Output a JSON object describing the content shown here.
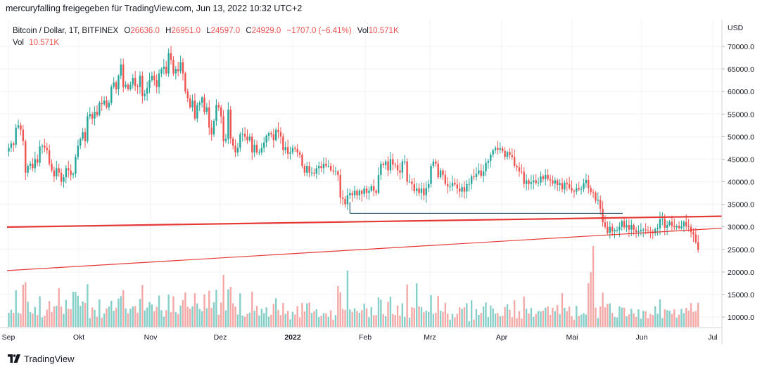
{
  "header": {
    "attribution": "mercuryfalling freigegeben für TradingView.com, Jun 13, 2022 10:32 UTC+2"
  },
  "legend": {
    "symbol": "Bitcoin / Dollar, 1T, BITFINEX",
    "open_label": "O",
    "open_value": "26636.0",
    "high_label": "H",
    "high_value": "26951.0",
    "low_label": "L",
    "low_value": "24597.0",
    "close_label": "C",
    "close_value": "24929.0",
    "change": "−1707.0 (−6.41%)",
    "vol_label": "Vol",
    "vol_value": "10.571K",
    "vol_row_label": "Vol",
    "vol_row_value": "10.571K"
  },
  "footer": {
    "brand": "TradingView"
  },
  "colors": {
    "up": "#26a69a",
    "down": "#ef5350",
    "up_vol": "#86cfc8",
    "down_vol": "#f4a9a7",
    "trendline": "#e53935",
    "support": "#1e4d5c"
  },
  "chart_data": {
    "type": "candlestick",
    "title": "Bitcoin / Dollar, 1T, BITFINEX",
    "currency_label": "USD",
    "y_ticks": [
      "70000.0",
      "65000.0",
      "60000.0",
      "55000.0",
      "50000.0",
      "45000.0",
      "40000.0",
      "35000.0",
      "30000.0",
      "25000.0",
      "20000.0",
      "15000.0",
      "10000.0"
    ],
    "x_ticks": [
      "Sep",
      "Okt",
      "Nov",
      "Dez",
      "2022",
      "Feb",
      "Mrz",
      "Apr",
      "Mai",
      "Jun",
      "Jul"
    ],
    "ylim": [
      7500,
      73000
    ],
    "x_range": [
      "2021-09-28",
      "2022-07-01"
    ],
    "closes": [
      47500,
      48500,
      48200,
      52000,
      52500,
      51500,
      49000,
      42000,
      43500,
      44000,
      43000,
      45000,
      44200,
      47800,
      48000,
      47500,
      47000,
      44000,
      42500,
      41200,
      43000,
      42000,
      40000,
      41000,
      43000,
      42500,
      41500,
      41800,
      45500,
      48000,
      49500,
      51000,
      49000,
      54500,
      55000,
      54000,
      55500,
      54800,
      57500,
      57200,
      58000,
      56500,
      57500,
      61000,
      62000,
      60500,
      63500,
      66000,
      61000,
      61500,
      60500,
      61500,
      63000,
      61200,
      61000,
      63500,
      59000,
      59500,
      60800,
      62500,
      63500,
      62500,
      61000,
      64000,
      65000,
      65500,
      64000,
      68500,
      67000,
      64000,
      65000,
      64500,
      66500,
      64000,
      60000,
      58500,
      56500,
      58000,
      54000,
      57000,
      57500,
      58700,
      55500,
      56500,
      52000,
      50500,
      53500,
      57000,
      56500,
      54500,
      49000,
      49500,
      56000,
      49500,
      48000,
      46500,
      47500,
      50500,
      50600,
      50000,
      49200,
      50000,
      46500,
      48200,
      46500,
      46500,
      47500,
      48700,
      50200,
      50800,
      50500,
      49200,
      51500,
      51000,
      50000,
      47000,
      47700,
      46200,
      46500,
      47500,
      47300,
      46500,
      46000,
      43500,
      42000,
      43500,
      42000,
      42000,
      41800,
      43000,
      43500,
      43000,
      44000,
      43500,
      43500,
      42500,
      42300,
      42300,
      41500,
      36500,
      36200,
      35000,
      37000,
      37500,
      37000,
      38000,
      37000,
      38000,
      37300,
      38500,
      37500,
      38000,
      39000,
      38000,
      37500,
      41500,
      44000,
      43700,
      44500,
      42500,
      45000,
      43800,
      43700,
      42500,
      42000,
      44500,
      44500,
      40000,
      40000,
      39500,
      37900,
      38500,
      37500,
      38500,
      37000,
      38600,
      39500,
      43500,
      44500,
      44000,
      41000,
      42500,
      41500,
      39500,
      39000,
      39000,
      39800,
      39400,
      38500,
      37800,
      38800,
      37800,
      39500,
      39500,
      41200,
      41000,
      41800,
      42500,
      41300,
      42300,
      44200,
      44600,
      46000,
      47000,
      47500,
      47100,
      47400,
      46800,
      45500,
      46600,
      45900,
      45500,
      43500,
      43200,
      42300,
      42200,
      39500,
      40300,
      39500,
      39900,
      40300,
      39700,
      39800,
      41200,
      40600,
      41500,
      40600,
      40300,
      39600,
      40300,
      39300,
      39700,
      38300,
      39800,
      39500,
      38600,
      38000,
      37800,
      38600,
      38300,
      38400,
      39700,
      40400,
      38600,
      37700,
      37600,
      35800,
      36000,
      34000,
      31000,
      30000,
      28700,
      30000,
      29000,
      29300,
      29300,
      30000,
      31300,
      29900,
      30400,
      29400,
      30400,
      29300,
      28800,
      29000,
      29300,
      29400,
      29200,
      29100,
      29000,
      28600,
      29500,
      29700,
      31700,
      31800,
      29800,
      30400,
      31100,
      30200,
      29900,
      30200,
      29700,
      30100,
      31100,
      30200,
      30000,
      28800,
      28300,
      26600,
      24900
    ],
    "notes": "Daily BTC/USD candles from late Sep 2021 to Jun 13 2022 with volume histogram; red ascending trendline from ~20,300 to ~29,700, thick red resistance line ~30,000 to ~32,300, dark support line at ~33,000 from late Jan to end of May."
  }
}
